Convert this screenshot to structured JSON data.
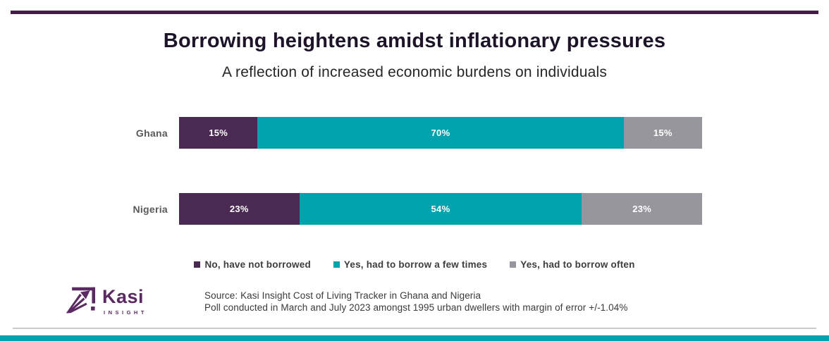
{
  "header": {
    "title": "Borrowing heightens amidst inflationary pressures",
    "subtitle": "A reflection of increased economic burdens on individuals"
  },
  "chart_data": {
    "type": "bar",
    "stacked": true,
    "orientation": "horizontal",
    "categories": [
      "Ghana",
      "Nigeria"
    ],
    "series": [
      {
        "name": "No, have not borrowed",
        "color": "#4a2a52",
        "values": [
          15,
          23
        ]
      },
      {
        "name": "Yes, had to borrow a few times",
        "color": "#00a2ae",
        "values": [
          70,
          54
        ]
      },
      {
        "name": "Yes, had to borrow often",
        "color": "#97969d",
        "values": [
          15,
          23
        ]
      }
    ],
    "value_format": "percent",
    "xlim": [
      0,
      100
    ],
    "grid": false,
    "legend_position": "bottom",
    "data_labels": [
      "15%",
      "70%",
      "15%",
      "23%",
      "54%",
      "23%"
    ]
  },
  "footer": {
    "logo": {
      "wordmark": "Kasi",
      "tagline": "INSIGHT"
    },
    "source_line1": "Source: Kasi Insight Cost of Living Tracker in Ghana and Nigeria",
    "source_line2": "Poll conducted  in March and July 2023 amongst 1995 urban dwellers with margin of error +/-1.04%"
  },
  "colors": {
    "top_rule": "#431c47",
    "title_text": "#1d1429",
    "category_label": "#595959",
    "legend_text": "#3d3d3d",
    "logo_purple": "#5c2a62",
    "divider": "#cbcbcb",
    "bottom_bar": "#00a3ae"
  }
}
